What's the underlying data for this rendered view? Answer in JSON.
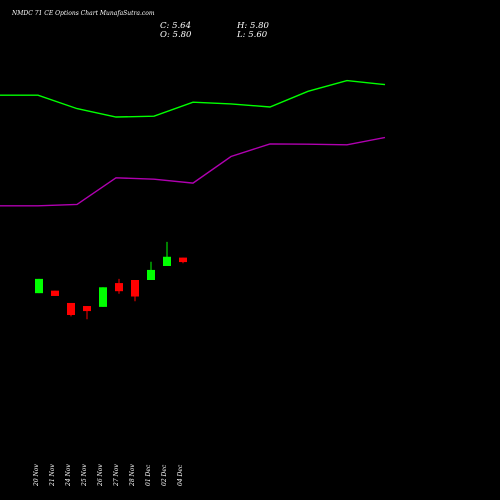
{
  "header": {
    "title": "NMDC 71 CE Options  Chart MunafaSutra.com",
    "close": "C: 5.64",
    "high": "H: 5.80",
    "open": "O: 5.80",
    "low": "L: 5.60"
  },
  "colors": {
    "background": "#000000",
    "upper_band": "#00ff00",
    "middle_band": "#b000b0",
    "bull_candle": "#00ff00",
    "bear_candle": "#ff0000",
    "text": "#ffffff"
  },
  "chart_data": {
    "type": "candlestick",
    "grid": false,
    "categories": [
      "20 Nov",
      "21 Nov",
      "24 Nov",
      "25 Nov",
      "26 Nov",
      "27 Nov",
      "28 Nov",
      "01 Dec",
      "02 Dec",
      "04 Dec"
    ],
    "candles": [
      {
        "date": "20 Nov",
        "open": 4.53,
        "high": 5.04,
        "low": 4.53,
        "close": 5.04,
        "color": "green"
      },
      {
        "date": "21 Nov",
        "open": 4.62,
        "high": 4.62,
        "low": 4.43,
        "close": 4.43,
        "color": "red"
      },
      {
        "date": "24 Nov",
        "open": 4.18,
        "high": 4.18,
        "low": 3.7,
        "close": 3.75,
        "color": "red"
      },
      {
        "date": "25 Nov",
        "open": 4.07,
        "high": 4.07,
        "low": 3.6,
        "close": 3.89,
        "color": "red"
      },
      {
        "date": "26 Nov",
        "open": 4.04,
        "high": 4.74,
        "low": 4.04,
        "close": 4.74,
        "color": "green"
      },
      {
        "date": "27 Nov",
        "open": 4.89,
        "high": 5.04,
        "low": 4.51,
        "close": 4.6,
        "color": "red"
      },
      {
        "date": "28 Nov",
        "open": 5.0,
        "high": 5.0,
        "low": 4.24,
        "close": 4.41,
        "color": "red"
      },
      {
        "date": "01 Dec",
        "open": 5.0,
        "high": 5.65,
        "low": 5.0,
        "close": 5.36,
        "color": "green"
      },
      {
        "date": "02 Dec",
        "open": 5.5,
        "high": 6.36,
        "low": 5.5,
        "close": 5.83,
        "color": "green"
      },
      {
        "date": "04 Dec",
        "open": 5.8,
        "high": 5.8,
        "low": 5.6,
        "close": 5.64,
        "color": "red"
      }
    ],
    "overlay_lines": [
      {
        "color": "#00ff00",
        "values": [
          11.6,
          11.6,
          11.12,
          10.82,
          10.85,
          11.35,
          11.29,
          11.18,
          11.74,
          12.12,
          11.98
        ]
      },
      {
        "color": "#b000b0",
        "values": [
          7.65,
          7.65,
          7.7,
          8.65,
          8.6,
          8.46,
          9.41,
          9.86,
          9.85,
          9.83,
          10.09
        ]
      }
    ]
  }
}
